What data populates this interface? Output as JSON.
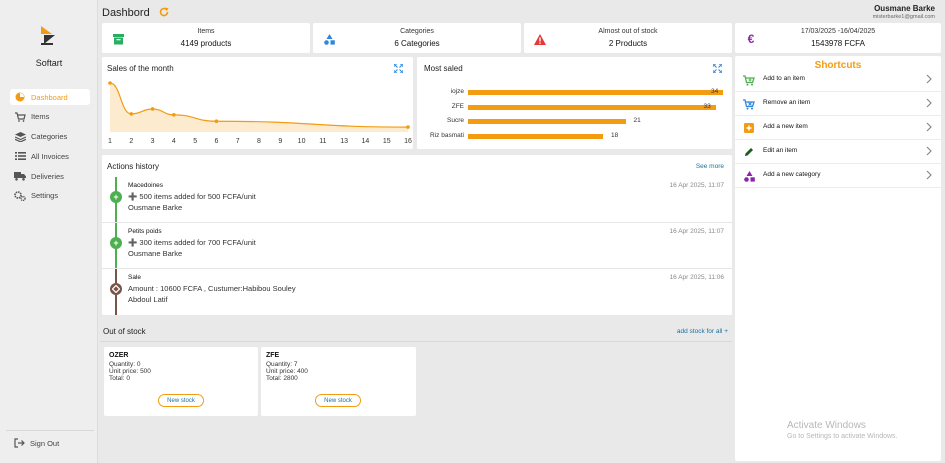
{
  "app": {
    "brand": "Softart"
  },
  "sidebar": {
    "items": [
      {
        "label": "Dashboard",
        "icon": "dashboard-icon",
        "active": true
      },
      {
        "label": "Items",
        "icon": "cart-icon"
      },
      {
        "label": "Categories",
        "icon": "layers-icon"
      },
      {
        "label": "All Invoices",
        "icon": "list-icon"
      },
      {
        "label": "Deliveries",
        "icon": "truck-icon"
      },
      {
        "label": "Settings",
        "icon": "gears-icon"
      }
    ],
    "signout": "Sign Out"
  },
  "header": {
    "title": "Dashbord",
    "user_name": "Ousmane Barke",
    "user_email": "misterbarke1@gmail.com"
  },
  "stats": [
    {
      "label": "Items",
      "value": "4149 products",
      "icon": "box-icon",
      "color": "#27ae60"
    },
    {
      "label": "Categories",
      "value": "6 Categories",
      "icon": "shapes-icon",
      "color": "#2e86de"
    },
    {
      "label": "Almost out of stock",
      "value": "2 Products",
      "icon": "warning-icon",
      "color": "#e53935"
    },
    {
      "label": "17/03/2025 -16/04/2025",
      "value": "1543978 FCFA",
      "icon": "euro-icon",
      "color": "#8e24aa"
    }
  ],
  "sales_chart": {
    "title": "Sales of the month",
    "chart_data": {
      "type": "area",
      "x": [
        1,
        2,
        3,
        4,
        6,
        16
      ],
      "y": [
        100,
        37,
        47,
        35,
        22,
        10
      ],
      "xticks": [
        "1",
        "2",
        "3",
        "4",
        "5",
        "6",
        "7",
        "8",
        "9",
        "10",
        "11",
        "13",
        "14",
        "15",
        "16"
      ],
      "color": "#f39c12"
    }
  },
  "most_saled": {
    "title": "Most saled",
    "chart_data": {
      "type": "bar",
      "orientation": "horizontal",
      "categories": [
        "iojze",
        "ZFE",
        "Sucre",
        "Riz basmati"
      ],
      "values": [
        34,
        33,
        21,
        18
      ],
      "color": "#f39c12"
    }
  },
  "actions": {
    "title": "Actions history",
    "see_more": "See more",
    "rows": [
      {
        "title": "Macedoines",
        "detail": "➕ 500 items added for 500 FCFA/unit",
        "user": "Ousmane Barke",
        "time": "16 Apr 2025, 11:07",
        "type": "add",
        "color": "#4caf50"
      },
      {
        "title": "Petits poids",
        "detail": "➕ 300 items added for 700 FCFA/unit",
        "user": "Ousmane Barke",
        "time": "16 Apr 2025, 11:07",
        "type": "add",
        "color": "#4caf50"
      },
      {
        "title": "Sale",
        "detail": "Amount : 10600 FCFA , Custumer:Habibou Souley",
        "user": "Abdoul Latif",
        "time": "16 Apr 2025, 11:06",
        "type": "sale",
        "color": "#795548"
      }
    ]
  },
  "out_of_stock": {
    "title": "Out of stock",
    "add_all": "add stock for all +",
    "items": [
      {
        "name": "OZER",
        "quantity": "Quantity: 0",
        "unit_price": "Unit price: 500",
        "total": "Total: 0",
        "button": "New stock"
      },
      {
        "name": "ZFE",
        "quantity": "Quantity: 7",
        "unit_price": "Unit price: 400",
        "total": "Total: 2800",
        "button": "New stock"
      }
    ]
  },
  "shortcuts": {
    "title": "Shortcuts",
    "items": [
      {
        "label": "Add to an item",
        "icon": "cart-plus-icon"
      },
      {
        "label": "Remove an item",
        "icon": "cart-remove-icon"
      },
      {
        "label": "Add a new item",
        "icon": "plus-square-icon"
      },
      {
        "label": "Edit an item",
        "icon": "pencil-icon"
      },
      {
        "label": "Add a new category",
        "icon": "category-icon"
      }
    ]
  },
  "watermark": {
    "line1": "Activate Windows",
    "line2": "Go to Settings to activate Windows."
  }
}
